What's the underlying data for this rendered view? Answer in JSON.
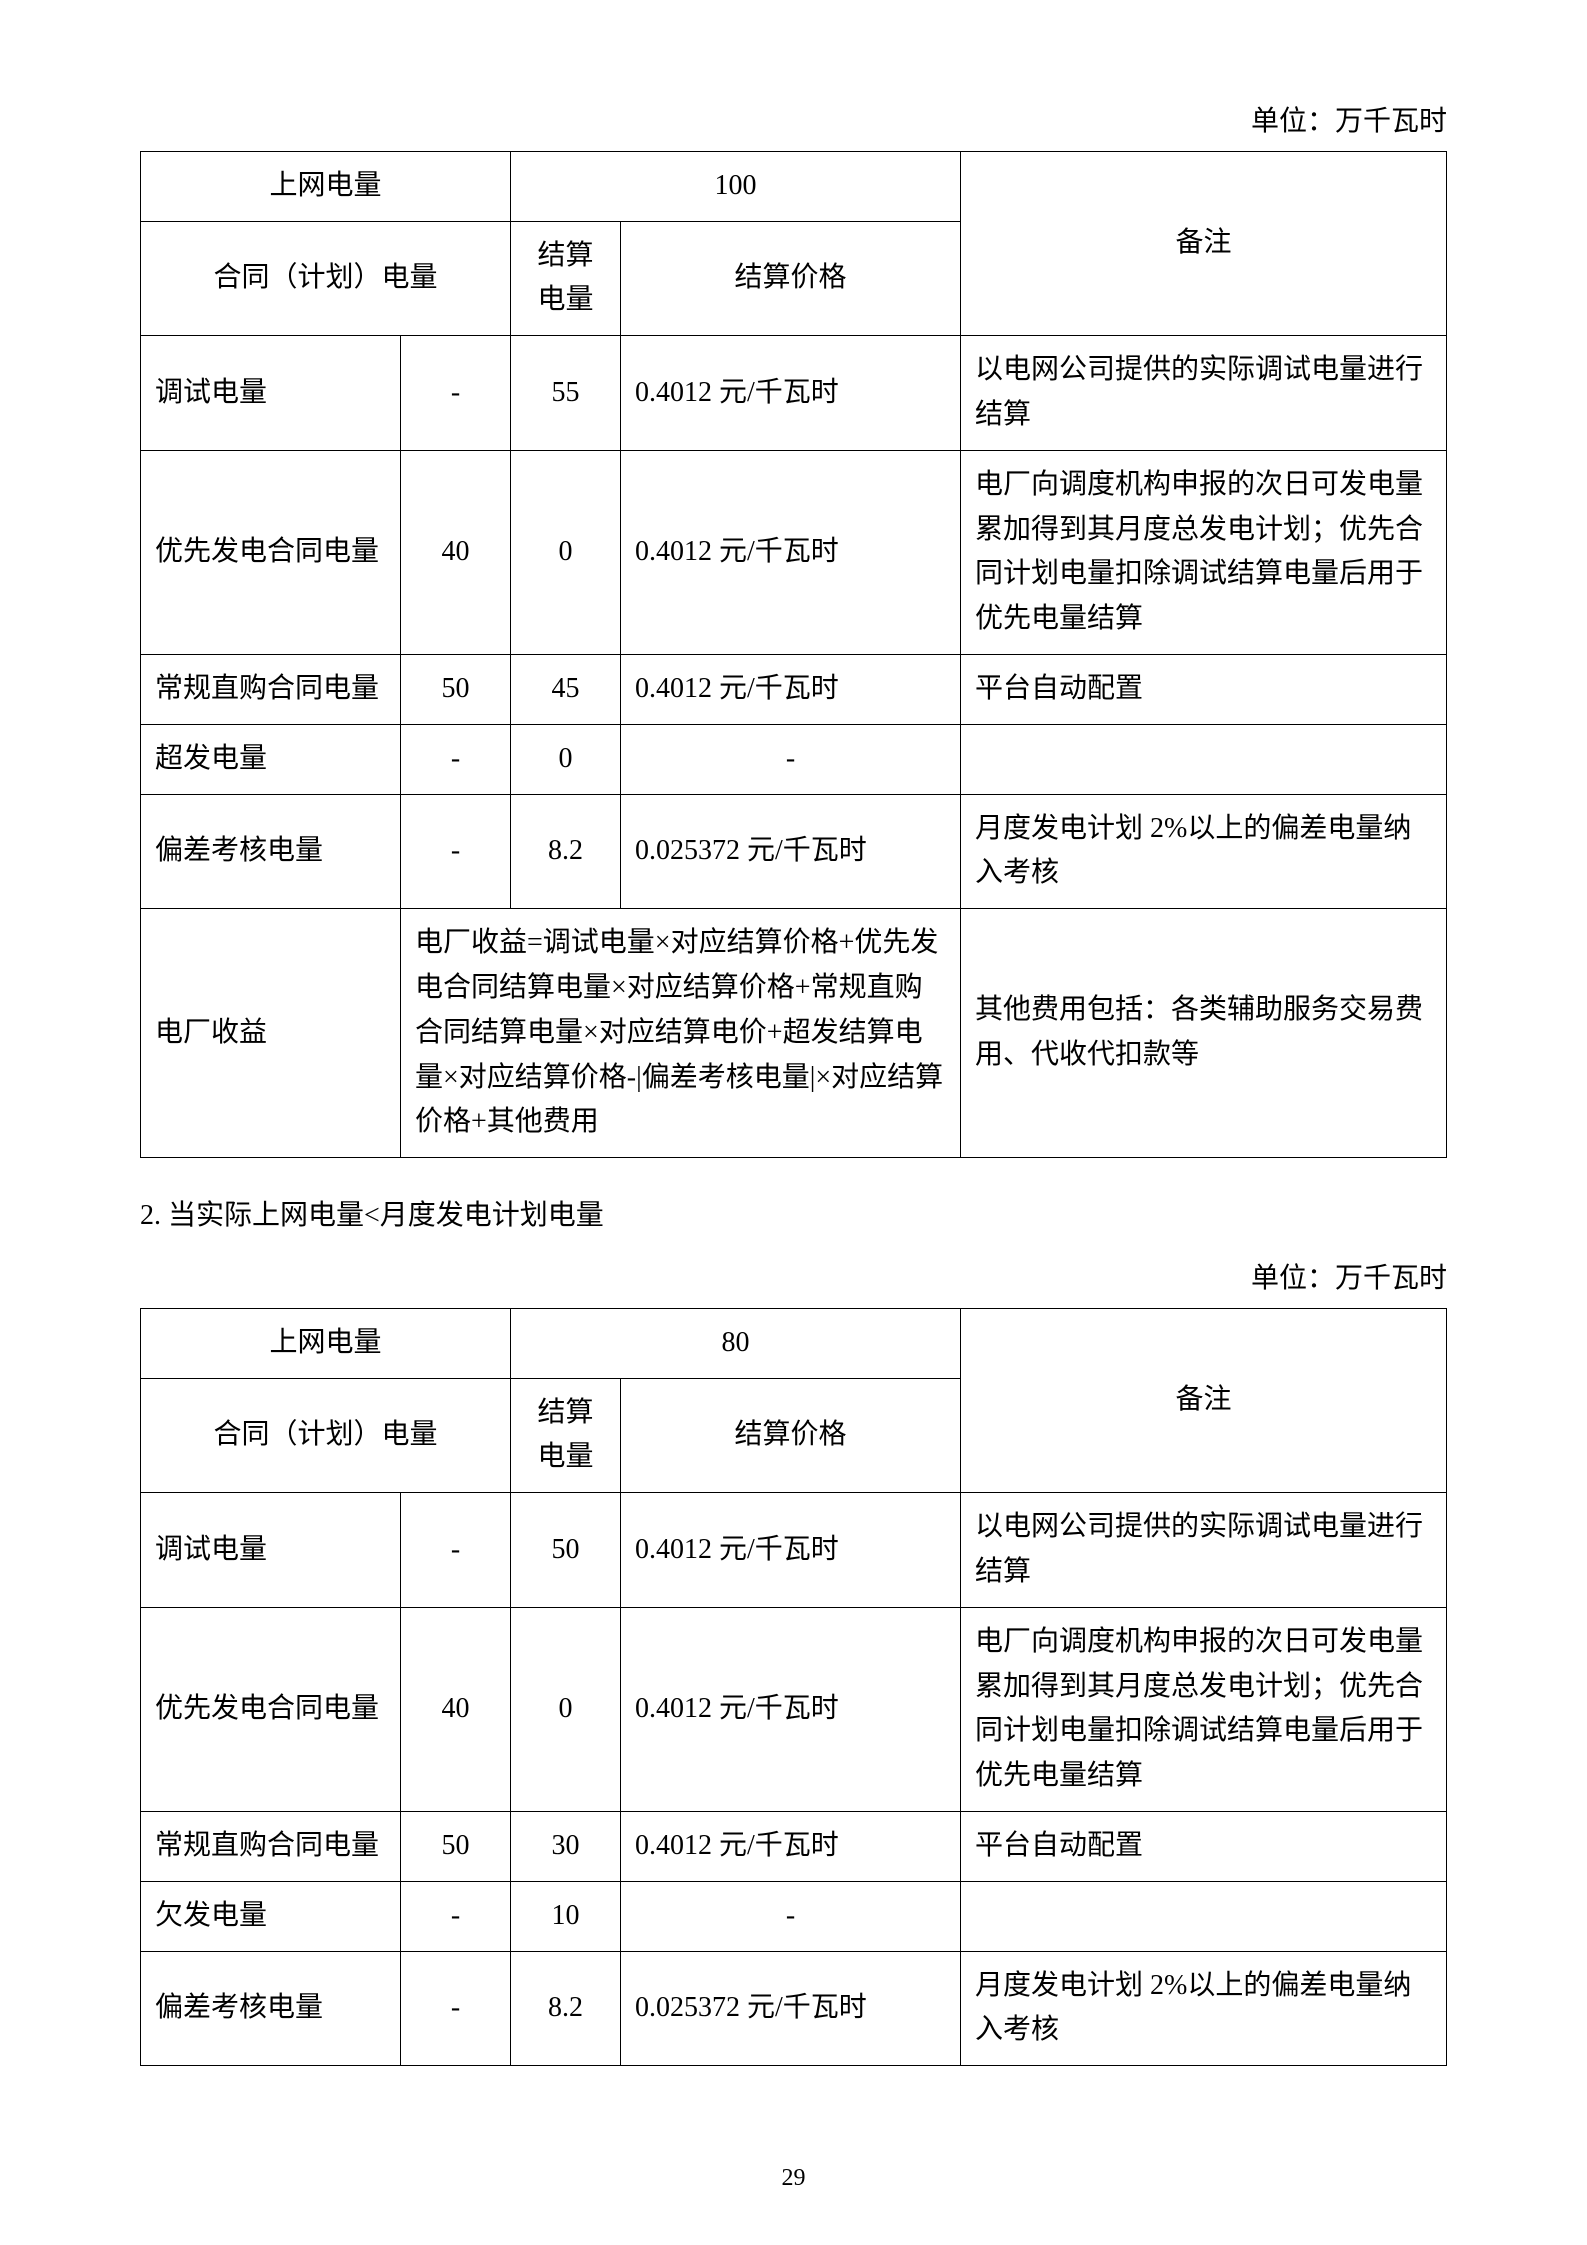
{
  "page_number": "29",
  "unit_label": "单位：万千瓦时",
  "table1": {
    "header_upload": "上网电量",
    "header_upload_value": "100",
    "header_remark": "备注",
    "header_contract": "合同（计划）电量",
    "header_settle_qty": "结算电量",
    "header_price": "结算价格",
    "rows": [
      {
        "name": "调试电量",
        "v1": "-",
        "v2": "55",
        "price": "0.4012 元/千瓦时",
        "note": "以电网公司提供的实际调试电量进行结算"
      },
      {
        "name": "优先发电合同电量",
        "v1": "40",
        "v2": "0",
        "price": "0.4012 元/千瓦时",
        "note": "电厂向调度机构申报的次日可发电量累加得到其月度总发电计划；优先合同计划电量扣除调试结算电量后用于优先电量结算"
      },
      {
        "name": "常规直购合同电量",
        "v1": "50",
        "v2": "45",
        "price": "0.4012 元/千瓦时",
        "note": "平台自动配置"
      },
      {
        "name": "超发电量",
        "v1": "-",
        "v2": "0",
        "price": "-",
        "note": ""
      },
      {
        "name": "偏差考核电量",
        "v1": "-",
        "v2": "8.2",
        "price": "0.025372 元/千瓦时",
        "note": "月度发电计划 2%以上的偏差电量纳入考核"
      }
    ],
    "revenue_row": {
      "name": "电厂收益",
      "formula": "电厂收益=调试电量×对应结算价格+优先发电合同结算电量×对应结算价格+常规直购合同结算电量×对应结算电价+超发结算电量×对应结算价格-|偏差考核电量|×对应结算价格+其他费用",
      "note": "其他费用包括：各类辅助服务交易费用、代收代扣款等"
    }
  },
  "section2_title": "2. 当实际上网电量<月度发电计划电量",
  "table2": {
    "header_upload": "上网电量",
    "header_upload_value": "80",
    "header_remark": "备注",
    "header_contract": "合同（计划）电量",
    "header_settle_qty": "结算电量",
    "header_price": "结算价格",
    "rows": [
      {
        "name": "调试电量",
        "v1": "-",
        "v2": "50",
        "price": "0.4012 元/千瓦时",
        "note": "以电网公司提供的实际调试电量进行结算"
      },
      {
        "name": "优先发电合同电量",
        "v1": "40",
        "v2": "0",
        "price": "0.4012 元/千瓦时",
        "note": "电厂向调度机构申报的次日可发电量累加得到其月度总发电计划；优先合同计划电量扣除调试结算电量后用于优先电量结算"
      },
      {
        "name": "常规直购合同电量",
        "v1": "50",
        "v2": "30",
        "price": "0.4012 元/千瓦时",
        "note": "平台自动配置"
      },
      {
        "name": "欠发电量",
        "v1": "-",
        "v2": "10",
        "price": "-",
        "note": ""
      },
      {
        "name": "偏差考核电量",
        "v1": "-",
        "v2": "8.2",
        "price": "0.025372 元/千瓦时",
        "note": "月度发电计划 2%以上的偏差电量纳入考核"
      }
    ]
  }
}
